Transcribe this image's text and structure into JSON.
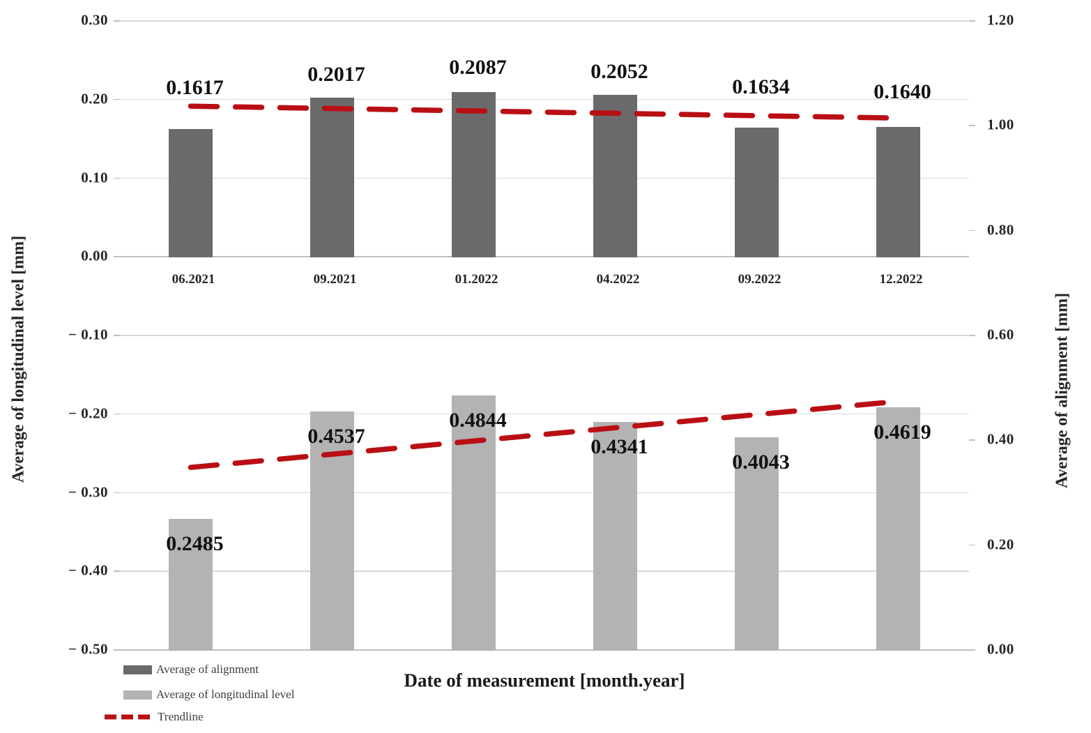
{
  "chart_data": {
    "type": "bar",
    "categories": [
      "06.2021",
      "09.2021",
      "01.2022",
      "04.2022",
      "09.2022",
      "12.2022"
    ],
    "series": [
      {
        "name": "Average of alignment",
        "values": [
          0.1617,
          0.2017,
          0.2087,
          0.2052,
          0.1634,
          0.164
        ],
        "labels": [
          "0.1617",
          "0.2017",
          "0.2087",
          "0.2052",
          "0.1634",
          "0.1640"
        ],
        "color": "#6a6a6a",
        "plotted_on": "upper half, baseline at left-axis 0.00"
      },
      {
        "name": "Average of longitudinal level",
        "values": [
          0.2485,
          0.4537,
          0.4844,
          0.4341,
          0.4043,
          0.4619
        ],
        "labels": [
          "0.2485",
          "0.4537",
          "0.4844",
          "0.4341",
          "0.4043",
          "0.4619"
        ],
        "color": "#b3b3b3",
        "plotted_on": "lower half, baseline at right-axis 0.00"
      }
    ],
    "trendlines": [
      {
        "name": "Trendline",
        "axis": "left",
        "start_value": 0.1907,
        "end_value": 0.1756,
        "color": "#b90f14"
      },
      {
        "name": "Trendline",
        "axis": "right",
        "start_value": 0.347,
        "end_value": 0.473,
        "color": "#b90f14"
      }
    ],
    "left_axis": {
      "title": "Average of longitudinal level [mm]",
      "min": -0.5,
      "max": 0.3,
      "step": 0.1,
      "tick_labels": [
        "0.30",
        "0.20",
        "0.10",
        "0.00",
        "− 0.10",
        "− 0.20",
        "− 0.30",
        "− 0.40",
        "− 0.50"
      ]
    },
    "right_axis": {
      "title": "Average of alignment [mm]",
      "min": 0.0,
      "max": 1.2,
      "step": 0.2,
      "tick_labels": [
        "1.20",
        "1.00",
        "0.80",
        "0.60",
        "0.40",
        "0.20",
        "0.00"
      ]
    },
    "xlabel": "Date of measurement [month.year]",
    "grid": "horizontal, light gray",
    "legend": {
      "position": "bottom-left",
      "items": [
        {
          "label": "Average of alignment",
          "swatch": "dark-gray-rect",
          "color": "#6a6a6a"
        },
        {
          "label": "Average of longitudinal level",
          "swatch": "light-gray-rect",
          "color": "#b3b3b3"
        },
        {
          "label": "Trendline",
          "swatch": "red-dashed-line",
          "color": "#b90f14"
        }
      ]
    },
    "colors": {
      "alignment_bar": "#6a6a6a",
      "longitudinal_bar": "#b3b3b3",
      "trendline": "#b90f14",
      "gridline": "#d9d9d9",
      "background": "#ffffff"
    }
  }
}
